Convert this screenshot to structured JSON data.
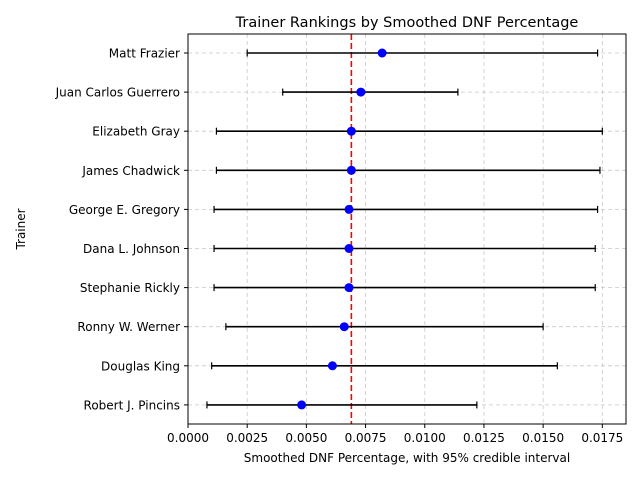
{
  "chart_data": {
    "type": "scatter",
    "title": "Trainer Rankings by Smoothed DNF Percentage",
    "xlabel": "Smoothed DNF Percentage, with 95% credible interval",
    "ylabel": "Trainer",
    "xlim": [
      0.0,
      0.0185
    ],
    "x_ticks": [
      0.0,
      0.0025,
      0.005,
      0.0075,
      0.01,
      0.0125,
      0.015,
      0.0175
    ],
    "x_tick_labels": [
      "0.0000",
      "0.0025",
      "0.0050",
      "0.0075",
      "0.0100",
      "0.0125",
      "0.0150",
      "0.0175"
    ],
    "grid": true,
    "reference_line": {
      "value": 0.0069,
      "style": "dashed",
      "color": "#ff0000"
    },
    "point_color": "#0000ff",
    "errorbar_color": "#000000",
    "trainers": [
      {
        "name": "Matt Frazier",
        "value": 0.0082,
        "lower": 0.0025,
        "upper": 0.0173
      },
      {
        "name": "Juan Carlos Guerrero",
        "value": 0.0073,
        "lower": 0.004,
        "upper": 0.0114
      },
      {
        "name": "Elizabeth Gray",
        "value": 0.0069,
        "lower": 0.0012,
        "upper": 0.0175
      },
      {
        "name": "James Chadwick",
        "value": 0.0069,
        "lower": 0.0012,
        "upper": 0.0174
      },
      {
        "name": "George E. Gregory",
        "value": 0.0068,
        "lower": 0.0011,
        "upper": 0.0173
      },
      {
        "name": "Dana L. Johnson",
        "value": 0.0068,
        "lower": 0.0011,
        "upper": 0.0172
      },
      {
        "name": "Stephanie Rickly",
        "value": 0.0068,
        "lower": 0.0011,
        "upper": 0.0172
      },
      {
        "name": "Ronny W. Werner",
        "value": 0.0066,
        "lower": 0.0016,
        "upper": 0.015
      },
      {
        "name": "Douglas King",
        "value": 0.0061,
        "lower": 0.001,
        "upper": 0.0156
      },
      {
        "name": "Robert J. Pincins",
        "value": 0.0048,
        "lower": 0.0008,
        "upper": 0.0122
      }
    ]
  }
}
